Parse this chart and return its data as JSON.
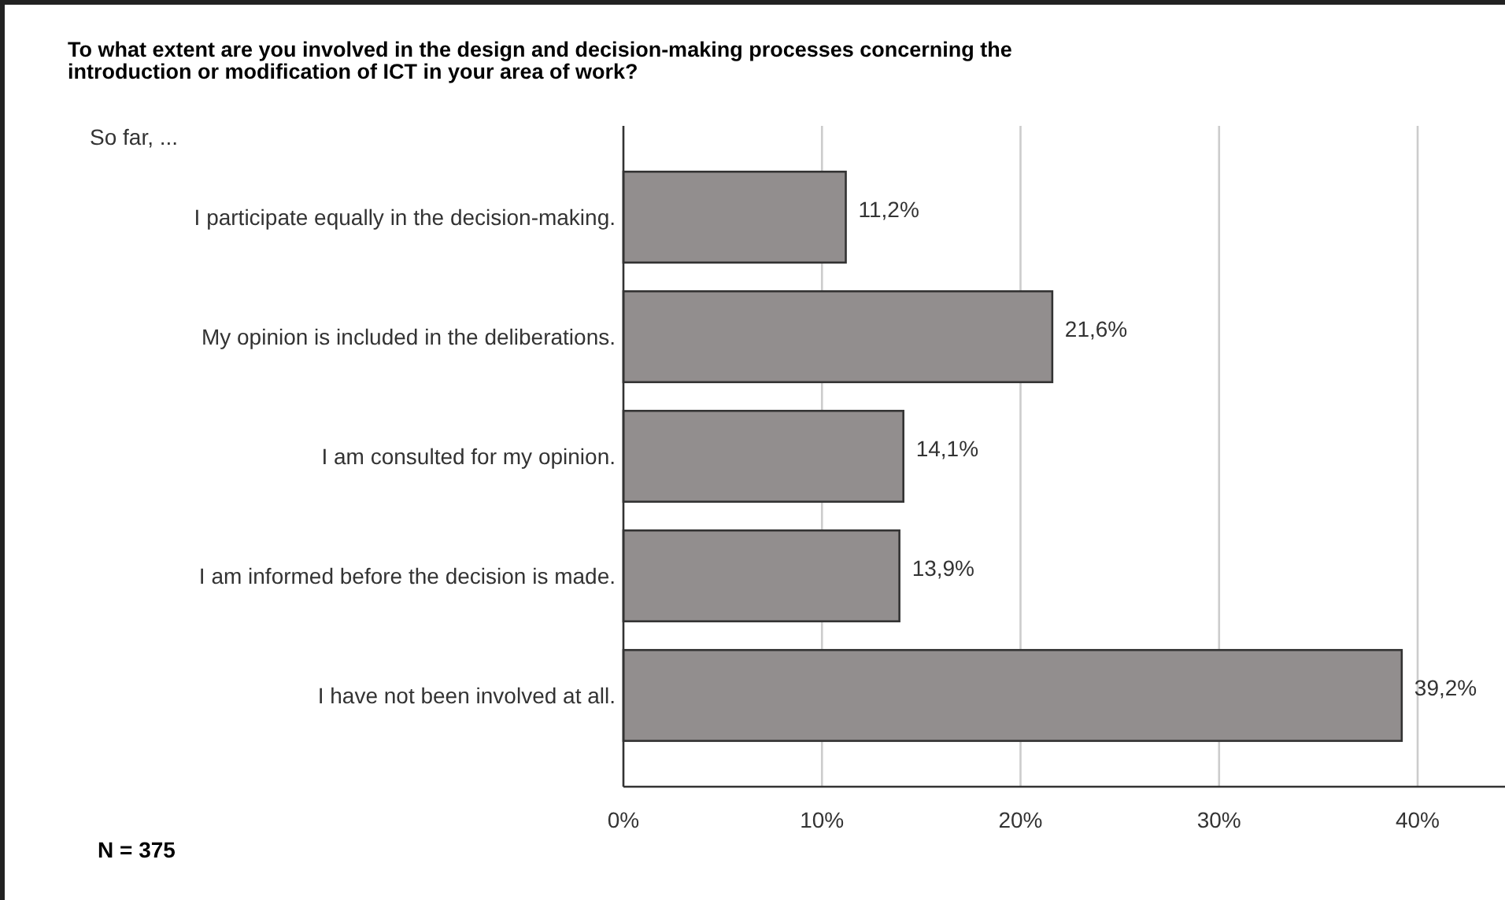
{
  "chart_data": {
    "type": "bar",
    "orientation": "horizontal",
    "title": "To what extent are you involved in the design and decision-making processes concerning the\nintroduction or modification of ICT in your area of work?",
    "subtitle": "So far, ...",
    "categories": [
      "I participate equally in the decision-making.",
      "My opinion is included in the deliberations.",
      "I am consulted for my opinion.",
      "I am informed before the decision is made.",
      "I have not been involved at all."
    ],
    "values": [
      11.2,
      21.6,
      14.1,
      13.9,
      39.2
    ],
    "value_labels": [
      "11,2%",
      "21,6%",
      "14,1%",
      "13,9%",
      "39,2%"
    ],
    "color": "#928e8e",
    "xlim": [
      0,
      44.4
    ],
    "xticks": [
      {
        "value": 0,
        "label": "0%"
      },
      {
        "value": 10,
        "label": "10%"
      },
      {
        "value": 20,
        "label": "20%"
      },
      {
        "value": 30,
        "label": "30%"
      },
      {
        "value": 40,
        "label": "40%"
      }
    ],
    "grid": "x",
    "annotations": [
      "N = 375"
    ]
  }
}
